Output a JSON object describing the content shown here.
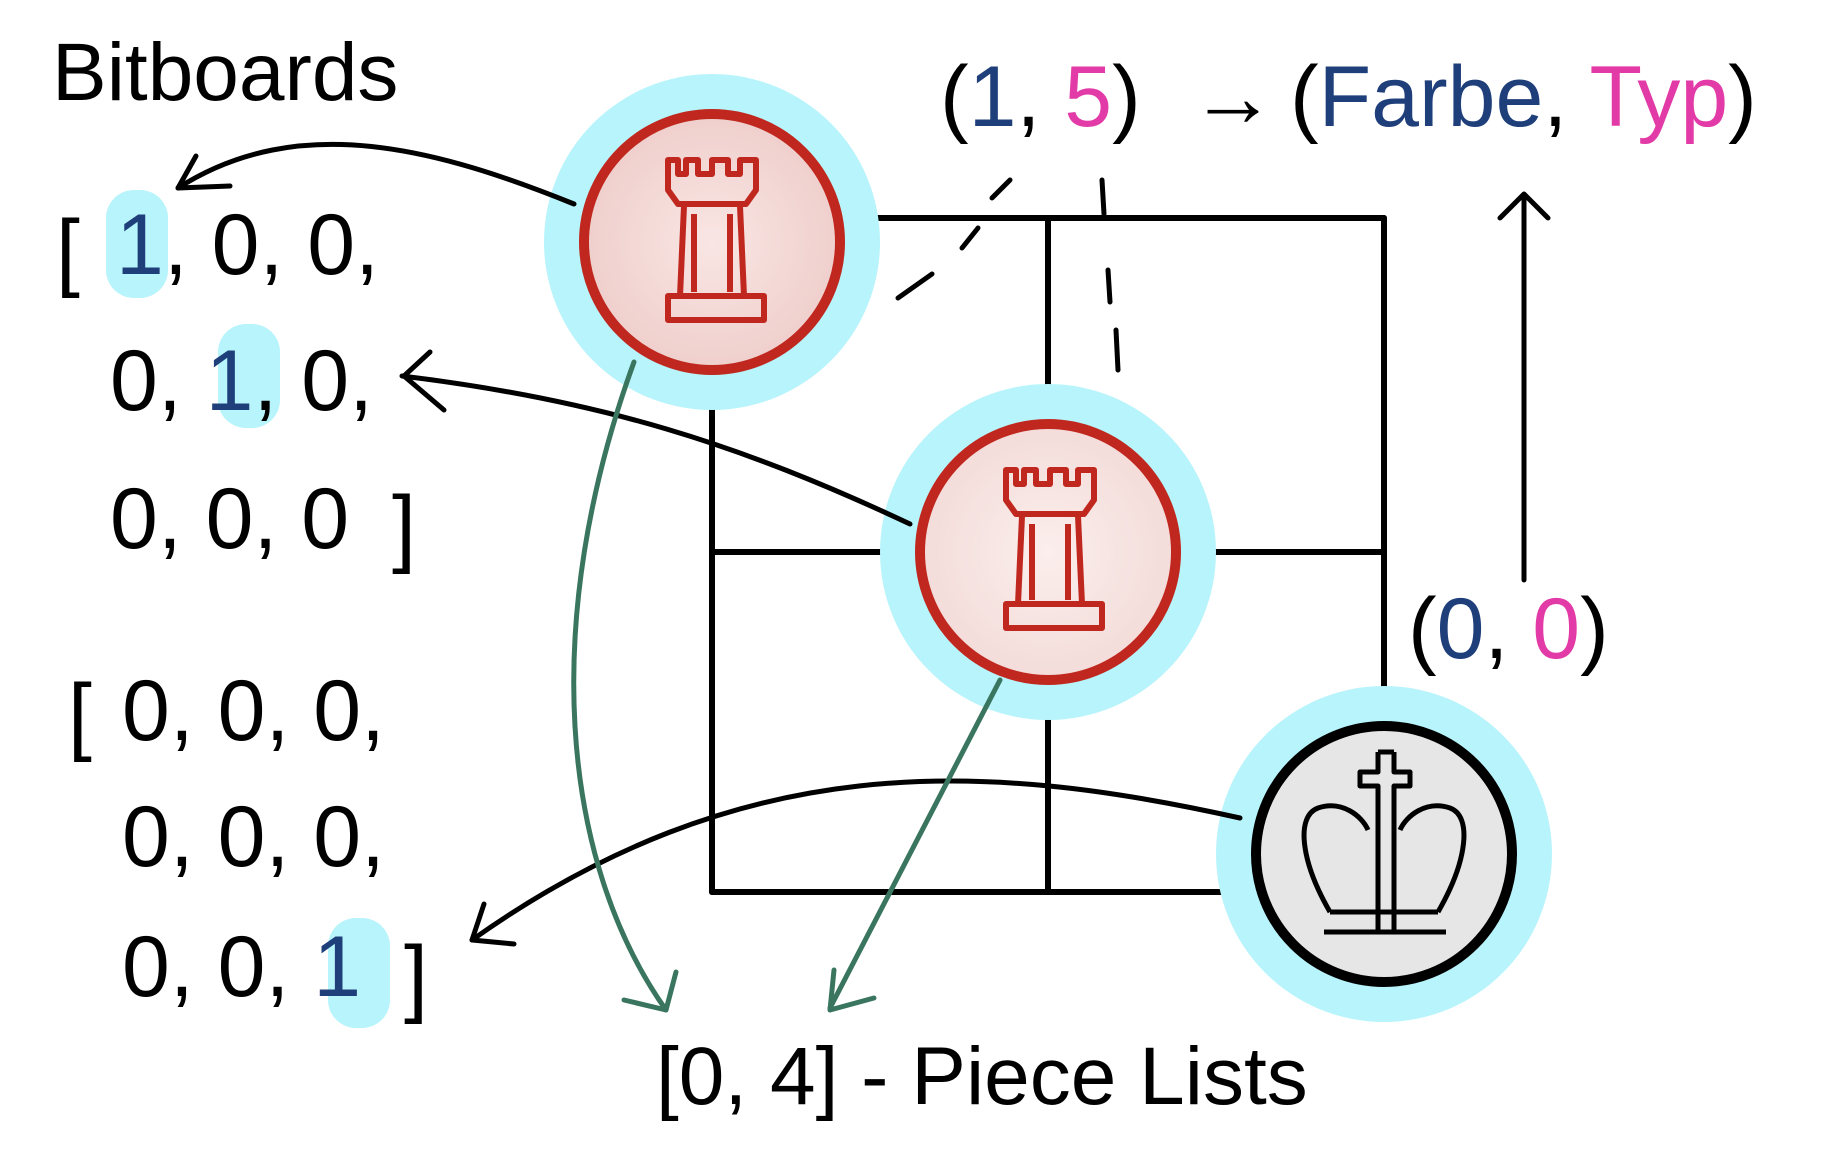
{
  "title": "Bitboards",
  "colors": {
    "ink": "#000000",
    "blue_digit": "#1f3f7a",
    "magenta_digit": "#e23aa6",
    "highlight": "#b8f4fb",
    "rook_stroke": "#c0281f",
    "rook_fill_top": "#f2d5d3",
    "rook_fill_mid": "#f8e7e5",
    "king_fill": "#e6e6e6",
    "green_arrow": "#3a7560"
  },
  "bitboard_red": {
    "open_bracket": "[",
    "close_bracket": "]",
    "row1": [
      "1",
      ", 0, 0,"
    ],
    "row2": [
      "0, ",
      "1",
      ", 0,"
    ],
    "row3": "0, 0, 0"
  },
  "bitboard_black": {
    "open_bracket": "[",
    "close_bracket": "]",
    "row1": "0, 0, 0,",
    "row2": "0, 0, 0,",
    "row3": [
      "0, 0, ",
      "1"
    ]
  },
  "encoding_top": {
    "open": "(",
    "color_value": "1",
    "sep": ", ",
    "type_value": "5",
    "close": ")",
    "arrow": "→",
    "open2": "(",
    "color_label": "Farbe",
    "sep2": ", ",
    "type_label": "Typ",
    "close2": ")"
  },
  "encoding_empty": {
    "open": "(",
    "color_value": "0",
    "sep": ", ",
    "type_value": "0",
    "close": ")"
  },
  "piece_lists": {
    "open": "[",
    "values": "0, 4",
    "close": "]",
    "label": " - Piece Lists"
  },
  "pieces": [
    {
      "name": "rook",
      "color": "red",
      "icon": "rook-icon"
    },
    {
      "name": "rook",
      "color": "red",
      "icon": "rook-icon"
    },
    {
      "name": "king",
      "color": "black",
      "icon": "king-icon"
    }
  ]
}
